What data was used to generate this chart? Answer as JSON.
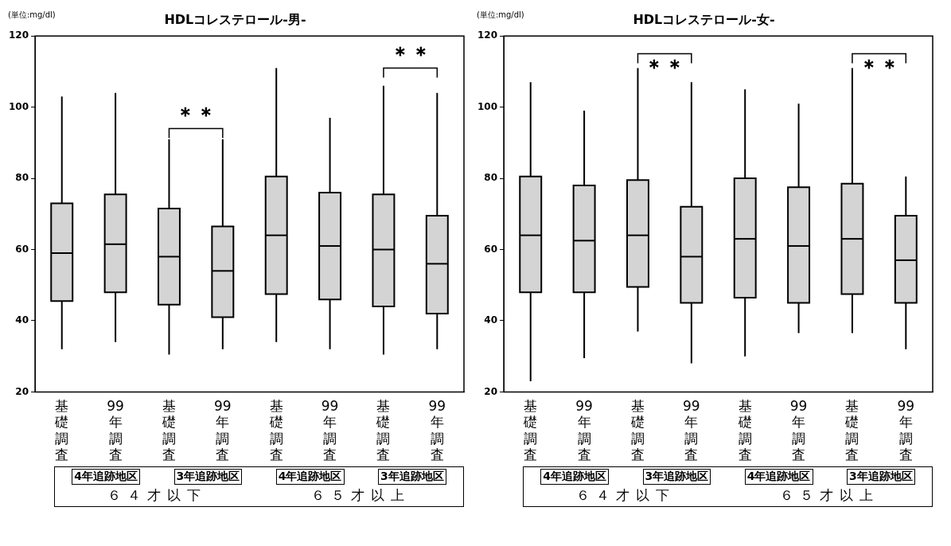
{
  "chart_data": [
    {
      "type": "box",
      "title": "HDLコレステロール-男-",
      "ylabel": "(単位:mg/dl)",
      "categories": [
        "基礎調査",
        "99年調査",
        "基礎調査",
        "99年調査",
        "基礎調査",
        "99年調査",
        "基礎調査",
        "99年調査"
      ],
      "color": "#d4d4d4",
      "ylim": [
        20,
        120
      ],
      "yticks": [
        20,
        40,
        60,
        80,
        100,
        120
      ],
      "grid": false,
      "boxes": [
        {
          "low": 32,
          "q1": 45.5,
          "median": 59,
          "q3": 73,
          "high": 103
        },
        {
          "low": 34,
          "q1": 48,
          "median": 61.5,
          "q3": 75.5,
          "high": 104
        },
        {
          "low": 30.5,
          "q1": 44.5,
          "median": 58,
          "q3": 71.5,
          "high": 91
        },
        {
          "low": 32,
          "q1": 41,
          "median": 54,
          "q3": 66.5,
          "high": 91
        },
        {
          "low": 34,
          "q1": 47.5,
          "median": 64,
          "q3": 80.5,
          "high": 111
        },
        {
          "low": 32,
          "q1": 46,
          "median": 61,
          "q3": 76,
          "high": 97
        },
        {
          "low": 30.5,
          "q1": 44,
          "median": 60,
          "q3": 75.5,
          "high": 106
        },
        {
          "low": 32,
          "q1": 42,
          "median": 56,
          "q3": 69.5,
          "high": 104
        }
      ],
      "annotations": [
        "＊＊",
        "＊＊",
        "4年追跡地区",
        "3年追跡地区",
        "4年追跡地区",
        "3年追跡地区",
        "６４才以下",
        "６５才以上"
      ]
    },
    {
      "type": "box",
      "title": "HDLコレステロール-女-",
      "ylabel": "(単位:mg/dl)",
      "categories": [
        "基礎調査",
        "99年調査",
        "基礎調査",
        "99年調査",
        "基礎調査",
        "99年調査",
        "基礎調査",
        "99年調査"
      ],
      "color": "#d4d4d4",
      "ylim": [
        20,
        120
      ],
      "yticks": [
        20,
        40,
        60,
        80,
        100,
        120
      ],
      "grid": false,
      "boxes": [
        {
          "low": 23,
          "q1": 48,
          "median": 64,
          "q3": 80.5,
          "high": 107
        },
        {
          "low": 29.5,
          "q1": 48,
          "median": 62.5,
          "q3": 78,
          "high": 99
        },
        {
          "low": 37,
          "q1": 49.5,
          "median": 64,
          "q3": 79.5,
          "high": 111
        },
        {
          "low": 28,
          "q1": 45,
          "median": 58,
          "q3": 72,
          "high": 107
        },
        {
          "low": 30,
          "q1": 46.5,
          "median": 63,
          "q3": 80,
          "high": 105
        },
        {
          "low": 36.5,
          "q1": 45,
          "median": 61,
          "q3": 77.5,
          "high": 101
        },
        {
          "low": 36.5,
          "q1": 47.5,
          "median": 63,
          "q3": 78.5,
          "high": 111
        },
        {
          "low": 32,
          "q1": 45,
          "median": 57,
          "q3": 69.5,
          "high": 80.5
        }
      ],
      "annotations": [
        "＊＊",
        "＊＊",
        "4年追跡地区",
        "3年追跡地区",
        "4年追跡地区",
        "3年追跡地区",
        "６４才以下",
        "６５才以上"
      ]
    }
  ]
}
